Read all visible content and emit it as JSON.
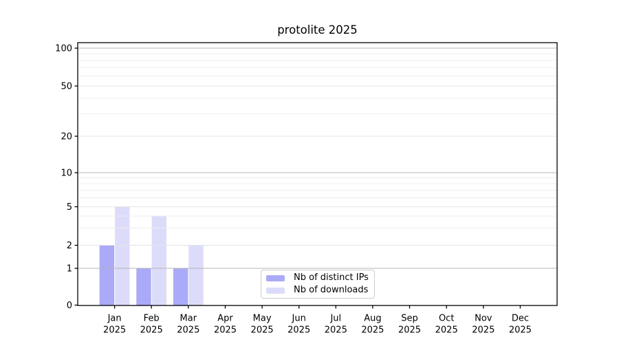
{
  "chart_data": {
    "type": "bar",
    "title": "protolite 2025",
    "categories": [
      "Jan",
      "Feb",
      "Mar",
      "Apr",
      "May",
      "Jun",
      "Jul",
      "Aug",
      "Sep",
      "Oct",
      "Nov",
      "Dec"
    ],
    "year_label": "2025",
    "series": [
      {
        "name": "Nb of distinct IPs",
        "color": "#aaaaf8",
        "values": [
          2,
          1,
          1,
          0,
          0,
          0,
          0,
          0,
          0,
          0,
          0,
          0
        ]
      },
      {
        "name": "Nb of downloads",
        "color": "#dcdcfa",
        "values": [
          5,
          4,
          2,
          0,
          0,
          0,
          0,
          0,
          0,
          0,
          0,
          0
        ]
      }
    ],
    "y_ticks": [
      0,
      1,
      2,
      5,
      10,
      20,
      50,
      100
    ],
    "y_minor_gridlines": [
      3,
      4,
      6,
      7,
      8,
      9,
      30,
      40,
      60,
      70,
      80,
      90
    ],
    "y_decade_gridlines": [
      1,
      10,
      100
    ],
    "y_scale": "log-like with linear 0-1 segment",
    "ylim": [
      0,
      130
    ],
    "grid": true,
    "legend_position": "bottom-center",
    "colors": {
      "decade_grid": "#b4b4b4",
      "major_grid": "#e4e4e4",
      "minor_grid": "#ececec",
      "axis": "#000000",
      "text": "#000000",
      "background": "#ffffff"
    }
  }
}
